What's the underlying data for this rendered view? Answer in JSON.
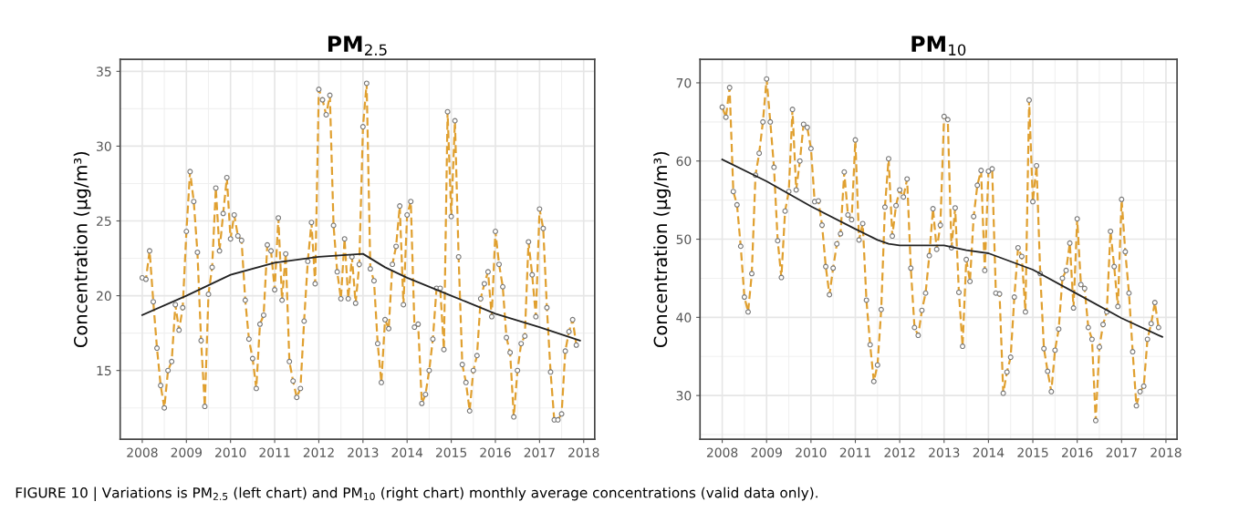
{
  "chart_data": [
    {
      "type": "line",
      "title": "PM$_{2.5}$",
      "ylabel": "Concentration (μg/m³)",
      "xlim": [
        "2007-07",
        "2018-04"
      ],
      "xticks": [
        "2008",
        "2009",
        "2010",
        "2011",
        "2012",
        "2013",
        "2014",
        "2015",
        "2016",
        "2017",
        "2018"
      ],
      "ylim": [
        10.4,
        35.8
      ],
      "yticks": [
        15,
        20,
        25,
        30,
        35
      ],
      "grid": true,
      "annotations": [
        "FIGURE 10 | Variations is PM$_{2.5}$ (left chart) and PM$_{10}$ (right chart) monthly average concentrations (valid data only)."
      ],
      "series": [
        {
          "color": "#e0a030",
          "line_style": "dashed",
          "marker": "circle",
          "x": [
            "2008-01",
            "2008-02",
            "2008-03",
            "2008-04",
            "2008-05",
            "2008-06",
            "2008-07",
            "2008-08",
            "2008-09",
            "2008-10",
            "2008-11",
            "2008-12",
            "2009-01",
            "2009-02",
            "2009-03",
            "2009-04",
            "2009-05",
            "2009-06",
            "2009-07",
            "2009-08",
            "2009-09",
            "2009-10",
            "2009-11",
            "2009-12",
            "2010-01",
            "2010-02",
            "2010-03",
            "2010-04",
            "2010-05",
            "2010-06",
            "2010-07",
            "2010-08",
            "2010-09",
            "2010-10",
            "2010-11",
            "2010-12",
            "2011-01",
            "2011-02",
            "2011-03",
            "2011-04",
            "2011-05",
            "2011-06",
            "2011-07",
            "2011-08",
            "2011-09",
            "2011-10",
            "2011-11",
            "2011-12",
            "2012-01",
            "2012-02",
            "2012-03",
            "2012-04",
            "2012-05",
            "2012-06",
            "2012-07",
            "2012-08",
            "2012-09",
            "2012-10",
            "2012-11",
            "2012-12",
            "2013-01",
            "2013-02",
            "2013-03",
            "2013-04",
            "2013-05",
            "2013-06",
            "2013-07",
            "2013-08",
            "2013-09",
            "2013-10",
            "2013-11",
            "2013-12",
            "2014-01",
            "2014-02",
            "2014-03",
            "2014-04",
            "2014-05",
            "2014-06",
            "2014-07",
            "2014-08",
            "2014-09",
            "2014-10",
            "2014-11",
            "2014-12",
            "2015-01",
            "2015-02",
            "2015-03",
            "2015-04",
            "2015-05",
            "2015-06",
            "2015-07",
            "2015-08",
            "2015-09",
            "2015-10",
            "2015-11",
            "2015-12",
            "2016-01",
            "2016-02",
            "2016-03",
            "2016-04",
            "2016-05",
            "2016-06",
            "2016-07",
            "2016-08",
            "2016-09",
            "2016-10",
            "2016-11",
            "2016-12",
            "2017-01",
            "2017-02",
            "2017-03",
            "2017-04",
            "2017-05",
            "2017-06",
            "2017-07",
            "2017-08",
            "2017-09",
            "2017-10",
            "2017-11"
          ],
          "values": [
            21.2,
            21.1,
            23.0,
            19.6,
            16.5,
            14.0,
            12.5,
            15.0,
            15.6,
            19.4,
            17.7,
            19.2,
            24.3,
            28.3,
            26.3,
            22.9,
            17.0,
            12.6,
            20.1,
            21.9,
            27.2,
            23.0,
            25.5,
            27.9,
            23.8,
            25.4,
            24.0,
            23.7,
            19.7,
            17.1,
            15.8,
            13.8,
            18.1,
            18.7,
            23.4,
            23.0,
            20.4,
            25.2,
            19.7,
            22.8,
            15.6,
            14.3,
            13.2,
            13.8,
            18.3,
            22.3,
            24.9,
            20.8,
            33.8,
            33.1,
            32.1,
            33.4,
            24.7,
            21.6,
            19.8,
            23.8,
            19.8,
            22.6,
            19.5,
            22.1,
            31.3,
            34.2,
            21.8,
            21.0,
            16.8,
            14.2,
            18.4,
            17.8,
            22.1,
            23.3,
            26.0,
            19.4,
            25.4,
            26.3,
            17.9,
            18.1,
            12.8,
            13.4,
            15.0,
            17.1,
            20.5,
            20.5,
            16.4,
            32.3,
            25.3,
            31.7,
            22.6,
            15.4,
            14.2,
            12.3,
            15.0,
            16.0,
            19.8,
            20.8,
            21.6,
            18.6,
            24.3,
            22.1,
            20.6,
            17.2,
            16.2,
            11.9,
            15.0,
            16.8,
            17.3,
            23.6,
            21.4,
            18.6,
            25.8,
            24.5,
            19.2,
            14.9,
            11.7,
            11.7,
            12.1,
            16.3,
            17.6,
            18.4,
            16.7
          ]
        },
        {
          "color": "#222222",
          "line_style": "solid",
          "marker": "none",
          "x": [
            "2008-01",
            "2009-01",
            "2010-01",
            "2011-01",
            "2012-01",
            "2013-01",
            "2013-07",
            "2014-01",
            "2015-01",
            "2016-01",
            "2017-01",
            "2017-12"
          ],
          "values": [
            18.7,
            20.0,
            21.4,
            22.2,
            22.6,
            22.8,
            21.9,
            21.2,
            20.0,
            18.8,
            17.9,
            17.0
          ]
        }
      ]
    },
    {
      "type": "line",
      "title": "PM$_{10}$",
      "ylabel": "Concentration (μg/m³)",
      "xlim": [
        "2007-07",
        "2018-04"
      ],
      "xticks": [
        "2008",
        "2009",
        "2010",
        "2011",
        "2012",
        "2013",
        "2014",
        "2015",
        "2016",
        "2017",
        "2018"
      ],
      "ylim": [
        24.4,
        73
      ],
      "yticks": [
        30,
        40,
        50,
        60,
        70
      ],
      "grid": true,
      "series": [
        {
          "color": "#e0a030",
          "line_style": "dashed",
          "marker": "circle",
          "x": [
            "2008-01",
            "2008-02",
            "2008-03",
            "2008-04",
            "2008-05",
            "2008-06",
            "2008-07",
            "2008-08",
            "2008-09",
            "2008-10",
            "2008-11",
            "2008-12",
            "2009-01",
            "2009-02",
            "2009-03",
            "2009-04",
            "2009-05",
            "2009-06",
            "2009-07",
            "2009-08",
            "2009-09",
            "2009-10",
            "2009-11",
            "2009-12",
            "2010-01",
            "2010-02",
            "2010-03",
            "2010-04",
            "2010-05",
            "2010-06",
            "2010-07",
            "2010-08",
            "2010-09",
            "2010-10",
            "2010-11",
            "2010-12",
            "2011-01",
            "2011-02",
            "2011-03",
            "2011-04",
            "2011-05",
            "2011-06",
            "2011-07",
            "2011-08",
            "2011-09",
            "2011-10",
            "2011-11",
            "2011-12",
            "2012-01",
            "2012-02",
            "2012-03",
            "2012-04",
            "2012-05",
            "2012-06",
            "2012-07",
            "2012-08",
            "2012-09",
            "2012-10",
            "2012-11",
            "2012-12",
            "2013-01",
            "2013-02",
            "2013-03",
            "2013-04",
            "2013-05",
            "2013-06",
            "2013-07",
            "2013-08",
            "2013-09",
            "2013-10",
            "2013-11",
            "2013-12",
            "2014-01",
            "2014-02",
            "2014-03",
            "2014-04",
            "2014-05",
            "2014-06",
            "2014-07",
            "2014-08",
            "2014-09",
            "2014-10",
            "2014-11",
            "2014-12",
            "2015-01",
            "2015-02",
            "2015-03",
            "2015-04",
            "2015-05",
            "2015-06",
            "2015-07",
            "2015-08",
            "2015-09",
            "2015-10",
            "2015-11",
            "2015-12",
            "2016-01",
            "2016-02",
            "2016-03",
            "2016-04",
            "2016-05",
            "2016-06",
            "2016-07",
            "2016-08",
            "2016-09",
            "2016-10",
            "2016-11",
            "2016-12",
            "2017-01",
            "2017-02",
            "2017-03",
            "2017-04",
            "2017-05",
            "2017-06",
            "2017-07",
            "2017-08",
            "2017-09",
            "2017-10",
            "2017-11"
          ],
          "values": [
            66.9,
            65.6,
            69.4,
            56.1,
            54.4,
            49.1,
            42.6,
            40.7,
            45.6,
            58.2,
            61.0,
            65.0,
            70.5,
            65.0,
            59.2,
            49.8,
            45.1,
            53.6,
            56.1,
            66.6,
            56.3,
            60.0,
            64.7,
            64.3,
            61.6,
            54.8,
            54.9,
            51.8,
            46.5,
            42.9,
            46.3,
            49.4,
            50.7,
            58.6,
            53.1,
            52.5,
            62.7,
            49.9,
            52.0,
            42.2,
            36.5,
            31.8,
            33.9,
            41.0,
            54.1,
            60.3,
            50.4,
            54.3,
            56.3,
            55.4,
            57.7,
            46.3,
            38.7,
            37.7,
            40.9,
            43.1,
            47.9,
            53.9,
            48.7,
            51.8,
            65.7,
            65.3,
            48.9,
            54.0,
            43.2,
            36.3,
            47.4,
            44.6,
            52.9,
            56.9,
            58.8,
            46.0,
            58.7,
            59.0,
            43.1,
            43.0,
            30.3,
            33.0,
            34.9,
            42.6,
            48.9,
            47.8,
            40.7,
            67.8,
            54.8,
            59.4,
            45.6,
            36.0,
            33.1,
            30.5,
            35.8,
            38.5,
            45.0,
            46.0,
            49.5,
            41.2,
            52.6,
            44.2,
            43.7,
            38.7,
            37.2,
            26.8,
            36.2,
            39.1,
            40.7,
            51.0,
            46.5,
            41.4,
            55.1,
            48.4,
            43.1,
            35.6,
            28.7,
            30.5,
            31.2,
            37.2,
            39.2,
            41.9,
            38.7
          ]
        },
        {
          "color": "#222222",
          "line_style": "solid",
          "marker": "none",
          "x": [
            "2008-01",
            "2009-01",
            "2010-01",
            "2011-01",
            "2011-07",
            "2011-10",
            "2012-01",
            "2013-01",
            "2013-07",
            "2014-01",
            "2015-01",
            "2016-01",
            "2017-01",
            "2017-12"
          ],
          "values": [
            60.2,
            57.4,
            54.2,
            51.3,
            49.9,
            49.4,
            49.2,
            49.2,
            48.6,
            48.2,
            46.1,
            43.0,
            39.9,
            37.5
          ]
        }
      ]
    }
  ]
}
